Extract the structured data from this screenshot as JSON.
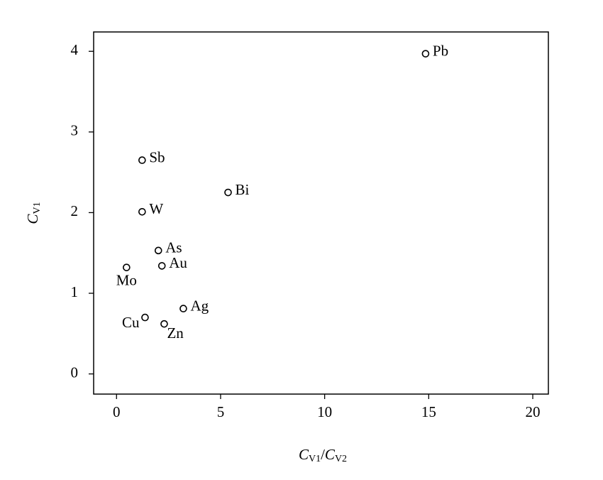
{
  "chart_data": {
    "type": "scatter",
    "x_label": [
      "C",
      "V1",
      "/",
      "C",
      "V2"
    ],
    "y_label": [
      "C",
      "V1"
    ],
    "labels": [
      "Pb",
      "Sb",
      "Bi",
      "W",
      "As",
      "Au",
      "Mo",
      "Ag",
      "Cu",
      "Zn"
    ],
    "x": [
      14.85,
      1.23,
      5.36,
      1.23,
      2.01,
      2.18,
      0.48,
      3.21,
      1.37,
      2.29
    ],
    "values": [
      3.97,
      2.65,
      2.25,
      2.01,
      1.53,
      1.34,
      1.32,
      0.81,
      0.7,
      0.62
    ],
    "color": "#000000",
    "xlim": [
      -1.1,
      20.75
    ],
    "xticks": [
      0,
      5,
      10,
      15,
      20
    ],
    "ylim": [
      -0.25,
      4.24
    ],
    "yticks": [
      0,
      1,
      2,
      3,
      4
    ],
    "grid": false
  }
}
